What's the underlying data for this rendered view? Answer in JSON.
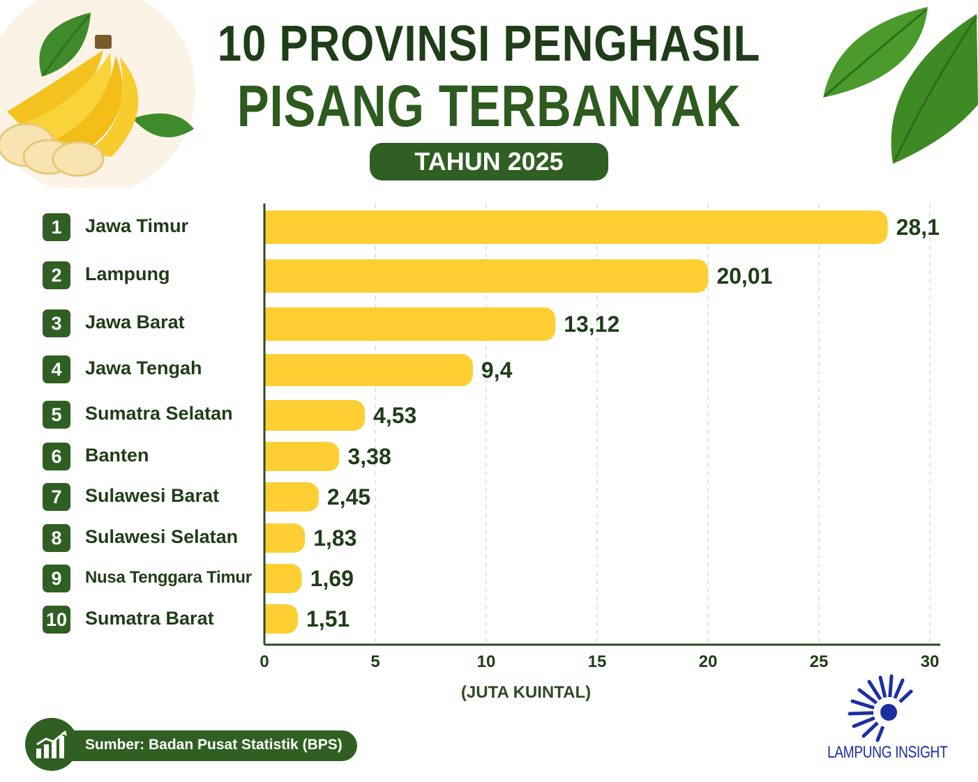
{
  "header": {
    "title_line1": "10 PROVINSI PENGHASIL",
    "title_line2": "PISANG TERBANYAK",
    "year_badge": "TAHUN 2025"
  },
  "chart_data": {
    "type": "bar",
    "orientation": "horizontal",
    "categories": [
      "Jawa Timur",
      "Lampung",
      "Jawa Barat",
      "Jawa Tengah",
      "Sumatra Selatan",
      "Banten",
      "Sulawesi Barat",
      "Sulawesi Selatan",
      "Nusa Tenggara Timur",
      "Sumatra Barat"
    ],
    "ranks": [
      "1",
      "2",
      "3",
      "4",
      "5",
      "6",
      "7",
      "8",
      "9",
      "10"
    ],
    "values": [
      28.1,
      20.01,
      13.12,
      9.4,
      4.53,
      3.38,
      2.45,
      1.83,
      1.69,
      1.51
    ],
    "value_labels": [
      "28,1",
      "20,01",
      "13,12",
      "9,4",
      "4,53",
      "3,38",
      "2,45",
      "1,83",
      "1,69",
      "1,51"
    ],
    "xlabel": "(JUTA KUINTAL)",
    "xlim": [
      0,
      30
    ],
    "xticks": [
      "0",
      "5",
      "10",
      "15",
      "20",
      "25",
      "30"
    ],
    "bar_color": "#fdcf33",
    "grid": true
  },
  "footer": {
    "source": "Sumber: Badan Pusat Statistik (BPS)",
    "brand": "LAMPUNG INSIGHT"
  },
  "colors": {
    "dark_green": "#2f5f22",
    "bar_yellow": "#fdcf33",
    "brand_blue": "#1b2fa3"
  }
}
